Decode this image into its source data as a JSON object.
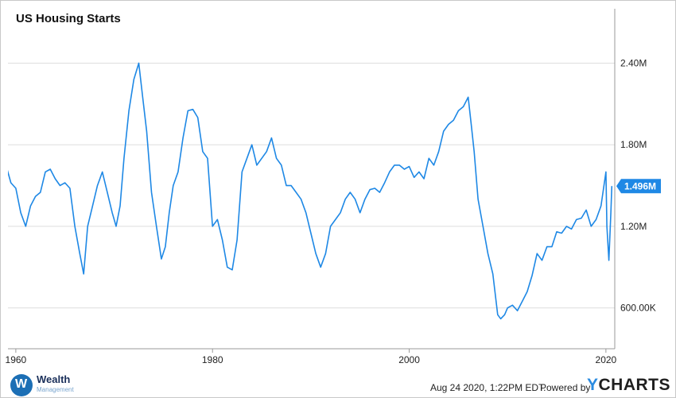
{
  "chart_data": {
    "type": "line",
    "title": "US Housing Starts",
    "xlabel": "",
    "ylabel": "",
    "xlim": [
      1959.2,
      2020.9
    ],
    "ylim": [
      300000,
      2800000
    ],
    "x_ticks": [
      1960,
      1980,
      2000,
      2020
    ],
    "x_tick_labels": [
      "1960",
      "1980",
      "2000",
      "2020"
    ],
    "y_ticks": [
      600000,
      1200000,
      1800000,
      2400000
    ],
    "y_tick_labels": [
      "600.00K",
      "1.20M",
      "1.80M",
      "2.40M"
    ],
    "grid": "horizontal",
    "y_axis_side": "right",
    "last_value_label": "1.496M",
    "series": [
      {
        "color": "#1e88e5",
        "x": [
          1959.0,
          1959.5,
          1960.0,
          1960.5,
          1961.0,
          1961.5,
          1962.0,
          1962.5,
          1963.0,
          1963.5,
          1964.0,
          1964.5,
          1965.0,
          1965.5,
          1966.0,
          1966.5,
          1966.9,
          1967.3,
          1967.8,
          1968.3,
          1968.8,
          1969.3,
          1969.8,
          1970.2,
          1970.6,
          1971.0,
          1971.5,
          1972.0,
          1972.5,
          1972.9,
          1973.3,
          1973.8,
          1974.3,
          1974.8,
          1975.2,
          1975.6,
          1976.0,
          1976.5,
          1977.0,
          1977.5,
          1978.0,
          1978.5,
          1979.0,
          1979.5,
          1980.0,
          1980.5,
          1981.0,
          1981.5,
          1982.0,
          1982.5,
          1983.0,
          1983.5,
          1984.0,
          1984.5,
          1985.0,
          1985.5,
          1986.0,
          1986.5,
          1987.0,
          1987.5,
          1988.0,
          1988.5,
          1989.0,
          1989.5,
          1990.0,
          1990.5,
          1991.0,
          1991.5,
          1992.0,
          1992.5,
          1993.0,
          1993.5,
          1994.0,
          1994.5,
          1995.0,
          1995.5,
          1996.0,
          1996.5,
          1997.0,
          1997.5,
          1998.0,
          1998.5,
          1999.0,
          1999.5,
          2000.0,
          2000.5,
          2001.0,
          2001.5,
          2002.0,
          2002.5,
          2003.0,
          2003.5,
          2004.0,
          2004.5,
          2005.0,
          2005.5,
          2006.0,
          2006.3,
          2006.6,
          2007.0,
          2007.5,
          2008.0,
          2008.5,
          2009.0,
          2009.3,
          2009.7,
          2010.0,
          2010.5,
          2011.0,
          2011.5,
          2012.0,
          2012.5,
          2013.0,
          2013.5,
          2014.0,
          2014.5,
          2015.0,
          2015.5,
          2016.0,
          2016.5,
          2017.0,
          2017.5,
          2018.0,
          2018.5,
          2019.0,
          2019.5,
          2020.0,
          2020.1,
          2020.3,
          2020.5,
          2020.6
        ],
        "values": [
          1650000,
          1520000,
          1480000,
          1300000,
          1200000,
          1350000,
          1420000,
          1450000,
          1600000,
          1620000,
          1550000,
          1500000,
          1520000,
          1480000,
          1200000,
          1000000,
          850000,
          1200000,
          1350000,
          1500000,
          1600000,
          1450000,
          1300000,
          1200000,
          1350000,
          1700000,
          2050000,
          2280000,
          2400000,
          2150000,
          1900000,
          1450000,
          1200000,
          960000,
          1050000,
          1300000,
          1500000,
          1600000,
          1850000,
          2050000,
          2060000,
          2000000,
          1750000,
          1700000,
          1200000,
          1250000,
          1100000,
          900000,
          880000,
          1100000,
          1600000,
          1700000,
          1800000,
          1650000,
          1700000,
          1750000,
          1850000,
          1700000,
          1650000,
          1500000,
          1500000,
          1450000,
          1400000,
          1300000,
          1150000,
          1000000,
          900000,
          1000000,
          1200000,
          1250000,
          1300000,
          1400000,
          1450000,
          1400000,
          1300000,
          1400000,
          1470000,
          1480000,
          1450000,
          1520000,
          1600000,
          1650000,
          1650000,
          1620000,
          1640000,
          1560000,
          1600000,
          1550000,
          1700000,
          1650000,
          1750000,
          1900000,
          1950000,
          1980000,
          2050000,
          2080000,
          2150000,
          1950000,
          1750000,
          1400000,
          1200000,
          1000000,
          850000,
          550000,
          520000,
          550000,
          600000,
          620000,
          580000,
          650000,
          720000,
          840000,
          1000000,
          950000,
          1050000,
          1050000,
          1160000,
          1150000,
          1200000,
          1180000,
          1250000,
          1260000,
          1320000,
          1200000,
          1250000,
          1350000,
          1600000,
          1200000,
          950000,
          1300000,
          1496000
        ]
      }
    ]
  },
  "footer": {
    "timestamp": "Aug 24 2020, 1:22PM EDT.",
    "powered_by": "Powered by",
    "brand_y": "Y",
    "brand_rest": "CHARTS",
    "logo_line1": "Wealth",
    "logo_line2": "Management",
    "logo_mark": "W"
  },
  "colors": {
    "line": "#1e88e5",
    "grid": "#dddddd",
    "axis": "#999999",
    "tag_bg": "#1e88e5"
  }
}
